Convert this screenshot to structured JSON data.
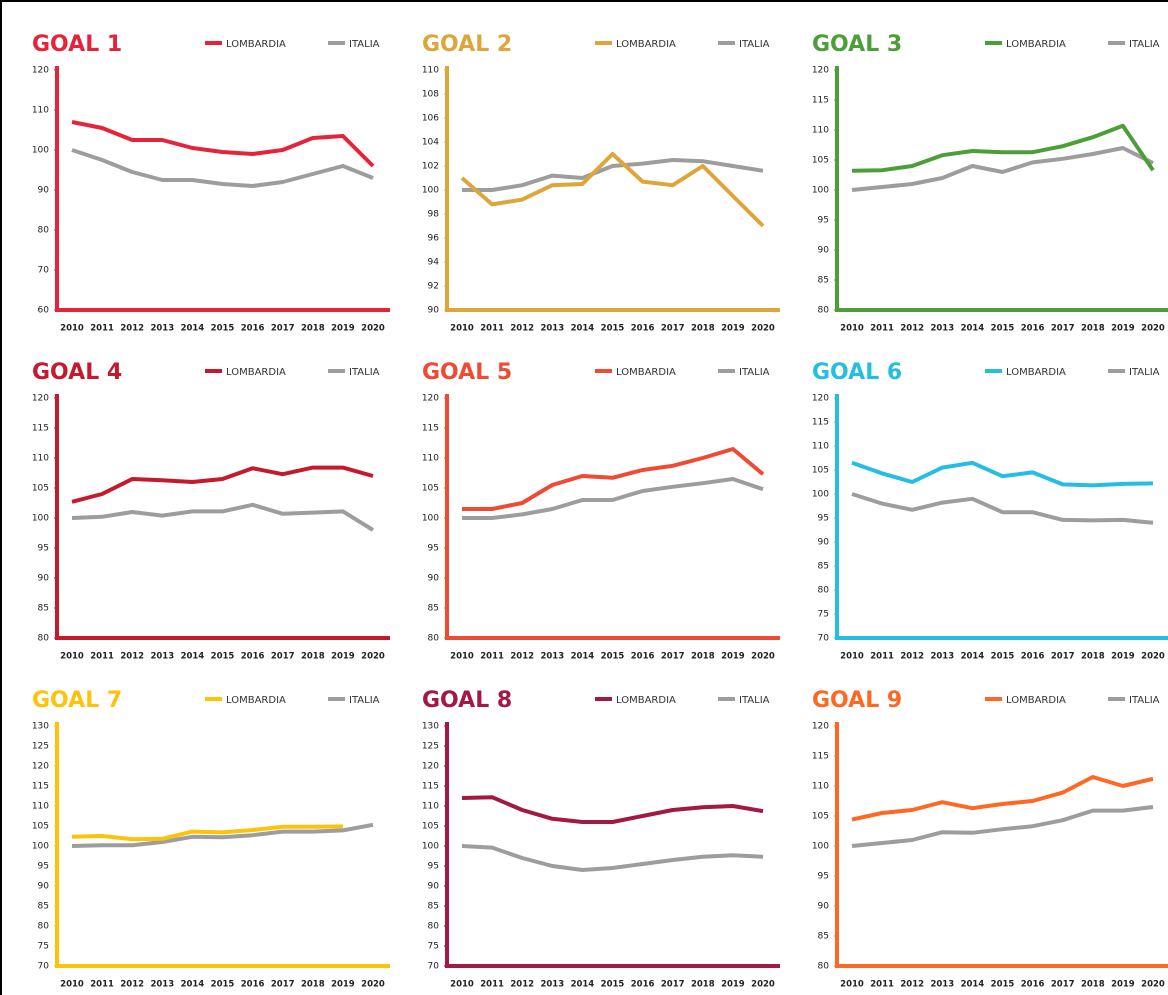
{
  "chart_data": [
    {
      "type": "line",
      "title": "GOAL 1",
      "categories": [
        "2010",
        "2011",
        "2012",
        "2013",
        "2014",
        "2015",
        "2016",
        "2017",
        "2018",
        "2019",
        "2020"
      ],
      "ylim": [
        60,
        120
      ],
      "yticks": [
        60,
        70,
        80,
        90,
        100,
        110,
        120
      ],
      "series": [
        {
          "name": "LOMBARDIA",
          "color": "#e5243b",
          "values": [
            107,
            105.5,
            102.5,
            102.5,
            100.5,
            99.5,
            99,
            100,
            103,
            103.5,
            96
          ]
        },
        {
          "name": "ITALIA",
          "color": "#9d9d9d",
          "values": [
            100,
            97.5,
            94.5,
            92.5,
            92.5,
            91.5,
            91,
            92,
            94,
            96,
            93
          ]
        }
      ]
    },
    {
      "type": "line",
      "title": "GOAL 2",
      "categories": [
        "2010",
        "2011",
        "2012",
        "2013",
        "2014",
        "2015",
        "2016",
        "2017",
        "2018",
        "2019",
        "2020"
      ],
      "ylim": [
        90,
        110
      ],
      "yticks": [
        90,
        92,
        94,
        96,
        98,
        100,
        102,
        104,
        106,
        108,
        110
      ],
      "series": [
        {
          "name": "LOMBARDIA",
          "color": "#dda63a",
          "values": [
            101,
            98.8,
            99.2,
            100.4,
            100.5,
            103,
            100.7,
            100.4,
            102,
            99.5,
            97
          ]
        },
        {
          "name": "ITALIA",
          "color": "#9d9d9d",
          "values": [
            100,
            100,
            100.4,
            101.2,
            101,
            102,
            102.2,
            102.5,
            102.4,
            102,
            101.6
          ]
        }
      ]
    },
    {
      "type": "line",
      "title": "GOAL 3",
      "categories": [
        "2010",
        "2011",
        "2012",
        "2013",
        "2014",
        "2015",
        "2016",
        "2017",
        "2018",
        "2019",
        "2020"
      ],
      "ylim": [
        80,
        120
      ],
      "yticks": [
        80,
        85,
        90,
        95,
        100,
        105,
        110,
        115,
        120
      ],
      "series": [
        {
          "name": "LOMBARDIA",
          "color": "#4c9f38",
          "values": [
            103.2,
            103.3,
            104,
            105.8,
            106.5,
            106.3,
            106.3,
            107.3,
            108.8,
            110.7,
            103.3
          ]
        },
        {
          "name": "ITALIA",
          "color": "#9d9d9d",
          "values": [
            100,
            100.5,
            101,
            102,
            104,
            103,
            104.6,
            105.2,
            106,
            107,
            104.5
          ]
        }
      ]
    },
    {
      "type": "line",
      "title": "GOAL 4",
      "categories": [
        "2010",
        "2011",
        "2012",
        "2013",
        "2014",
        "2015",
        "2016",
        "2017",
        "2018",
        "2019",
        "2020"
      ],
      "ylim": [
        80,
        120
      ],
      "yticks": [
        80,
        85,
        90,
        95,
        100,
        105,
        110,
        115,
        120
      ],
      "series": [
        {
          "name": "LOMBARDIA",
          "color": "#c5192d",
          "values": [
            102.7,
            104,
            106.5,
            106.3,
            106,
            106.5,
            108.3,
            107.3,
            108.4,
            108.4,
            107
          ]
        },
        {
          "name": "ITALIA",
          "color": "#9d9d9d",
          "values": [
            100,
            100.2,
            101,
            100.4,
            101.1,
            101.1,
            102.2,
            100.7,
            100.9,
            101.1,
            98
          ]
        }
      ]
    },
    {
      "type": "line",
      "title": "GOAL 5",
      "categories": [
        "2010",
        "2011",
        "2012",
        "2013",
        "2014",
        "2015",
        "2016",
        "2017",
        "2018",
        "2019",
        "2020"
      ],
      "ylim": [
        80,
        120
      ],
      "yticks": [
        80,
        85,
        90,
        95,
        100,
        105,
        110,
        115,
        120
      ],
      "series": [
        {
          "name": "LOMBARDIA",
          "color": "#ef4a34",
          "values": [
            101.5,
            101.5,
            102.5,
            105.5,
            107,
            106.7,
            108,
            108.7,
            110,
            111.5,
            107.3
          ]
        },
        {
          "name": "ITALIA",
          "color": "#9d9d9d",
          "values": [
            100,
            100,
            100.6,
            101.5,
            103,
            103,
            104.5,
            105.2,
            105.8,
            106.5,
            104.8
          ]
        }
      ]
    },
    {
      "type": "line",
      "title": "GOAL 6",
      "categories": [
        "2010",
        "2011",
        "2012",
        "2013",
        "2014",
        "2015",
        "2016",
        "2017",
        "2018",
        "2019",
        "2020"
      ],
      "ylim": [
        70,
        120
      ],
      "yticks": [
        70,
        75,
        80,
        85,
        90,
        95,
        100,
        105,
        110,
        115,
        120
      ],
      "series": [
        {
          "name": "LOMBARDIA",
          "color": "#26bde2",
          "values": [
            106.5,
            104.3,
            102.5,
            105.5,
            106.5,
            103.7,
            104.5,
            102,
            101.8,
            102.1,
            102.2
          ]
        },
        {
          "name": "ITALIA",
          "color": "#9d9d9d",
          "values": [
            100,
            98,
            96.7,
            98.2,
            99,
            96.2,
            96.2,
            94.6,
            94.5,
            94.6,
            94
          ]
        }
      ]
    },
    {
      "type": "line",
      "title": "GOAL 7",
      "categories": [
        "2010",
        "2011",
        "2012",
        "2013",
        "2014",
        "2015",
        "2016",
        "2017",
        "2018",
        "2019",
        "2020"
      ],
      "ylim": [
        70,
        130
      ],
      "yticks": [
        70,
        75,
        80,
        85,
        90,
        95,
        100,
        105,
        110,
        115,
        120,
        125,
        130
      ],
      "series": [
        {
          "name": "LOMBARDIA",
          "color": "#fcc30b",
          "values": [
            102.3,
            102.5,
            101.7,
            101.8,
            103.6,
            103.4,
            104,
            104.8,
            104.8,
            104.9,
            null
          ]
        },
        {
          "name": "ITALIA",
          "color": "#9d9d9d",
          "values": [
            100,
            100.2,
            100.2,
            101,
            102.3,
            102.2,
            102.7,
            103.6,
            103.6,
            103.9,
            105.3
          ]
        }
      ]
    },
    {
      "type": "line",
      "title": "GOAL 8",
      "categories": [
        "2010",
        "2011",
        "2012",
        "2013",
        "2014",
        "2015",
        "2016",
        "2017",
        "2018",
        "2019",
        "2020"
      ],
      "ylim": [
        70,
        130
      ],
      "yticks": [
        70,
        75,
        80,
        85,
        90,
        95,
        100,
        105,
        110,
        115,
        120,
        125,
        130
      ],
      "series": [
        {
          "name": "LOMBARDIA",
          "color": "#a21942",
          "values": [
            112,
            112.2,
            109,
            106.8,
            106,
            106,
            107.5,
            109,
            109.7,
            110,
            108.7
          ]
        },
        {
          "name": "ITALIA",
          "color": "#9d9d9d",
          "values": [
            100,
            99.6,
            97,
            95,
            94,
            94.5,
            95.5,
            96.5,
            97.3,
            97.7,
            97.3
          ]
        }
      ]
    },
    {
      "type": "line",
      "title": "GOAL 9",
      "categories": [
        "2010",
        "2011",
        "2012",
        "2013",
        "2014",
        "2015",
        "2016",
        "2017",
        "2018",
        "2019",
        "2020"
      ],
      "ylim": [
        80,
        120
      ],
      "yticks": [
        80,
        85,
        90,
        95,
        100,
        105,
        110,
        115,
        120
      ],
      "series": [
        {
          "name": "LOMBARDIA",
          "color": "#fd6925",
          "values": [
            104.4,
            105.5,
            106,
            107.3,
            106.3,
            107,
            107.5,
            108.9,
            111.5,
            110,
            111.2
          ]
        },
        {
          "name": "ITALIA",
          "color": "#9d9d9d",
          "values": [
            100,
            100.5,
            101,
            102.3,
            102.2,
            102.8,
            103.3,
            104.3,
            105.9,
            105.9,
            106.5
          ]
        }
      ]
    }
  ]
}
